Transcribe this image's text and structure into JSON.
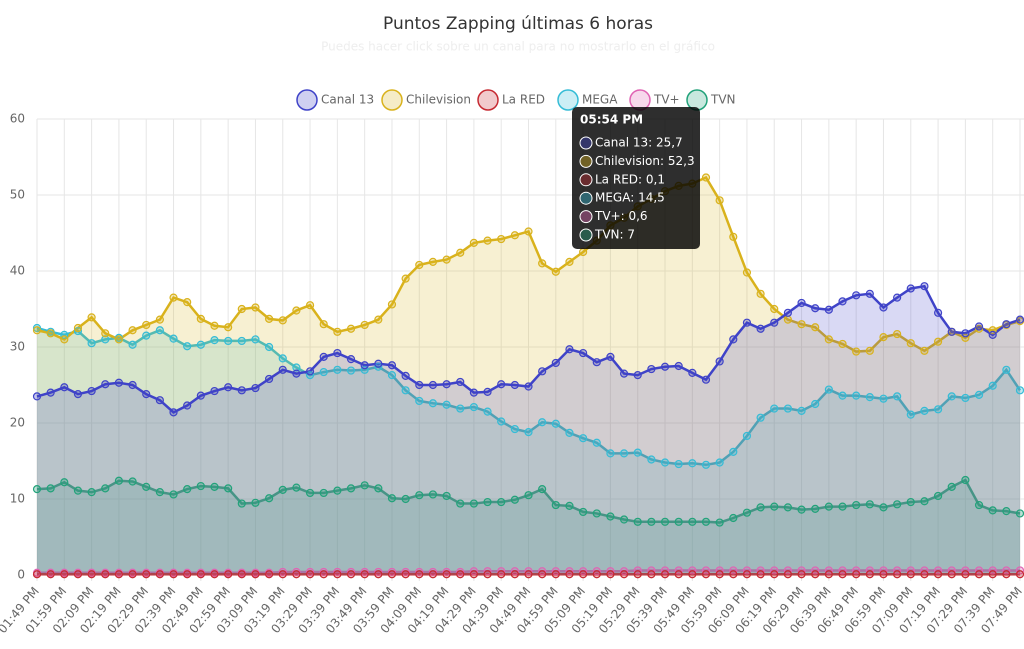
{
  "chart_data": {
    "type": "line",
    "title": "Puntos Zapping últimas 6 horas",
    "subtitle": "Puedes hacer click sobre un canal para no mostrarlo en el gráfico",
    "categories": [
      "01:49 PM",
      null,
      "01:59 PM",
      null,
      "02:09 PM",
      null,
      "02:19 PM",
      null,
      "02:29 PM",
      null,
      "02:39 PM",
      null,
      "02:49 PM",
      null,
      "02:59 PM",
      null,
      "03:09 PM",
      null,
      "03:19 PM",
      null,
      "03:29 PM",
      null,
      "03:39 PM",
      null,
      "03:49 PM",
      null,
      "03:59 PM",
      null,
      "04:09 PM",
      null,
      "04:19 PM",
      null,
      "04:29 PM",
      null,
      "04:39 PM",
      null,
      "04:49 PM",
      null,
      "04:59 PM",
      null,
      "05:09 PM",
      null,
      "05:19 PM",
      null,
      "05:29 PM",
      null,
      "05:39 PM",
      null,
      "05:49 PM",
      null,
      "05:59 PM",
      null,
      "06:09 PM",
      null,
      "06:19 PM",
      null,
      "06:29 PM",
      null,
      "06:39 PM",
      null,
      "06:49 PM",
      null,
      "06:59 PM",
      null,
      "07:09 PM",
      null,
      "07:19 PM",
      null,
      "07:29 PM",
      null,
      "07:39 PM",
      null,
      "07:49 PM"
    ],
    "ylim": [
      0,
      60
    ],
    "yticks": [
      0,
      10,
      20,
      30,
      40,
      50,
      60
    ],
    "grid": true,
    "fill": true,
    "legend": "top",
    "series": [
      {
        "name": "Canal 13",
        "color": "#3f43c8",
        "values": [
          23.5,
          24,
          24.7,
          23.8,
          24.2,
          25.1,
          25.3,
          25,
          23.8,
          23,
          21.4,
          22.3,
          23.6,
          24.2,
          24.7,
          24.3,
          24.6,
          25.8,
          27,
          26.5,
          26.8,
          28.7,
          29.2,
          28.4,
          27.6,
          27.8,
          27.6,
          26.2,
          25,
          25,
          25.1,
          25.4,
          24,
          24.1,
          25.1,
          25,
          24.8,
          26.8,
          27.9,
          29.7,
          29.2,
          28,
          28.7,
          26.5,
          26.3,
          27.1,
          27.4,
          27.5,
          26.6,
          25.7,
          28.1,
          31,
          33.2,
          32.4,
          33.2,
          34.5,
          35.8,
          35.1,
          34.9,
          36,
          36.8,
          37,
          35.2,
          36.5,
          37.7,
          38,
          34.5,
          32,
          31.8,
          32.7,
          31.6,
          33,
          33.6
        ]
      },
      {
        "name": "Chilevision",
        "color": "#d9b21c",
        "values": [
          32.2,
          31.8,
          31,
          32.5,
          33.9,
          31.8,
          31,
          32.2,
          32.9,
          33.6,
          36.5,
          35.9,
          33.7,
          32.8,
          32.6,
          35,
          35.2,
          33.7,
          33.5,
          34.8,
          35.5,
          33,
          32,
          32.4,
          32.9,
          33.6,
          35.6,
          39,
          40.8,
          41.2,
          41.5,
          42.4,
          43.7,
          44,
          44.2,
          44.7,
          45.2,
          41,
          39.9,
          41.2,
          42.5,
          44,
          46,
          47,
          48.5,
          49.5,
          50.5,
          51.2,
          51.5,
          52.3,
          49.3,
          44.5,
          39.8,
          37,
          35,
          33.6,
          33,
          32.6,
          31,
          30.4,
          29.4,
          29.5,
          31.3,
          31.7,
          30.5,
          29.5,
          30.7,
          32,
          31.2,
          32.4,
          32.2,
          32.9,
          33.4
        ]
      },
      {
        "name": "La RED",
        "color": "#c62a32",
        "values": [
          0.1,
          0.1,
          0.1,
          0.1,
          0.1,
          0.1,
          0.1,
          0.1,
          0.1,
          0.1,
          0.1,
          0.1,
          0.1,
          0.1,
          0.1,
          0.1,
          0.1,
          0.1,
          0.1,
          0.1,
          0.1,
          0.1,
          0.1,
          0.1,
          0.1,
          0.1,
          0.1,
          0.1,
          0.1,
          0.1,
          0.1,
          0.1,
          0.1,
          0.1,
          0.1,
          0.1,
          0.1,
          0.1,
          0.1,
          0.1,
          0.1,
          0.1,
          0.1,
          0.1,
          0.1,
          0.1,
          0.1,
          0.1,
          0.1,
          0.1,
          0.1,
          0.1,
          0.1,
          0.1,
          0.1,
          0.1,
          0.1,
          0.1,
          0.1,
          0.1,
          0.1,
          0.1,
          0.1,
          0.1,
          0.1,
          0.1,
          0.1,
          0.1,
          0.1,
          0.1,
          0.1,
          0.1,
          0.1
        ]
      },
      {
        "name": "MEGA",
        "color": "#35bcd6",
        "values": [
          32.5,
          32,
          31.6,
          32.1,
          30.5,
          31,
          31.2,
          30.3,
          31.5,
          32.2,
          31.1,
          30.1,
          30.3,
          30.9,
          30.8,
          30.8,
          31,
          30,
          28.5,
          27.3,
          26.3,
          26.7,
          27,
          26.9,
          27,
          27.4,
          26.3,
          24.3,
          22.9,
          22.6,
          22.4,
          21.9,
          22.1,
          21.5,
          20.2,
          19.2,
          18.8,
          20.1,
          19.9,
          18.7,
          18,
          17.4,
          16,
          16,
          16.1,
          15.2,
          14.8,
          14.6,
          14.7,
          14.5,
          14.8,
          16.2,
          18.3,
          20.7,
          21.9,
          21.9,
          21.6,
          22.5,
          24.4,
          23.6,
          23.6,
          23.4,
          23.2,
          23.5,
          21.1,
          21.6,
          21.8,
          23.5,
          23.3,
          23.7,
          24.9,
          27,
          24.3
        ]
      },
      {
        "name": "TV+",
        "color": "#e064b4",
        "values": [
          0.3,
          0.3,
          0.3,
          0.3,
          0.3,
          0.3,
          0.3,
          0.3,
          0.3,
          0.3,
          0.3,
          0.3,
          0.3,
          0.3,
          0.3,
          0.3,
          0.3,
          0.3,
          0.4,
          0.4,
          0.4,
          0.4,
          0.4,
          0.4,
          0.4,
          0.4,
          0.4,
          0.4,
          0.4,
          0.4,
          0.4,
          0.4,
          0.5,
          0.5,
          0.5,
          0.5,
          0.5,
          0.5,
          0.5,
          0.5,
          0.5,
          0.5,
          0.5,
          0.5,
          0.6,
          0.6,
          0.6,
          0.6,
          0.6,
          0.6,
          0.6,
          0.6,
          0.6,
          0.6,
          0.6,
          0.6,
          0.6,
          0.6,
          0.6,
          0.6,
          0.6,
          0.6,
          0.6,
          0.6,
          0.6,
          0.6,
          0.6,
          0.6,
          0.6,
          0.6,
          0.6,
          0.6,
          0.6
        ]
      },
      {
        "name": "TVN",
        "color": "#22a27a",
        "values": [
          11.3,
          11.4,
          12.2,
          11.1,
          10.9,
          11.4,
          12.4,
          12.3,
          11.6,
          10.9,
          10.6,
          11.3,
          11.7,
          11.6,
          11.4,
          9.4,
          9.5,
          10.1,
          11.2,
          11.5,
          10.8,
          10.8,
          11.1,
          11.4,
          11.8,
          11.4,
          10.1,
          10,
          10.5,
          10.6,
          10.4,
          9.4,
          9.4,
          9.6,
          9.6,
          9.9,
          10.5,
          11.3,
          9.2,
          9.1,
          8.3,
          8.1,
          7.7,
          7.3,
          7,
          7,
          7,
          7,
          7,
          7,
          6.9,
          7.5,
          8.2,
          8.9,
          9,
          8.9,
          8.6,
          8.7,
          9,
          9,
          9.2,
          9.3,
          8.9,
          9.3,
          9.6,
          9.7,
          10.4,
          11.6,
          12.5,
          9.2,
          8.5,
          8.4,
          8.1
        ]
      }
    ],
    "tooltip": {
      "title": "05:54 PM",
      "items": [
        "Canal 13: 25,7",
        "Chilevision: 52,3",
        "La RED: 0,1",
        "MEGA: 14,5",
        "TV+: 0,6",
        "TVN: 7"
      ]
    }
  }
}
